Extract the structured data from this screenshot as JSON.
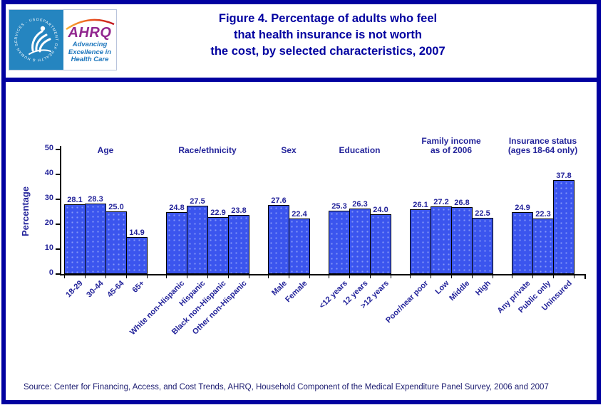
{
  "header": {
    "logo": {
      "seal_text": "DEPARTMENT OF HEALTH & HUMAN SERVICES · USA",
      "ahrq_text": "AHRQ",
      "tagline_lines": [
        "Advancing",
        "Excellence in",
        "Health Care"
      ]
    },
    "title_lines": [
      "Figure 4. Percentage of adults who feel",
      "that health insurance is not worth",
      "the cost, by selected characteristics, 2007"
    ]
  },
  "chart_data": {
    "type": "bar",
    "title": "Figure 4. Percentage of adults who feel that health insurance is not worth the cost, by selected characteristics, 2007",
    "ylabel": "Percentage",
    "xlabel": "",
    "ylim": [
      0,
      50
    ],
    "yticks": [
      0,
      10,
      20,
      30,
      40,
      50
    ],
    "grid": false,
    "legend": false,
    "bar_color": "#3b55ee",
    "bar_border_color": "#000000",
    "groups": [
      {
        "label": "Age",
        "label_lines": [
          "Age"
        ],
        "categories": [
          "18-29",
          "30-44",
          "45-64",
          "65+"
        ],
        "values": [
          28.1,
          28.3,
          25.0,
          14.9
        ]
      },
      {
        "label": "Race/ethnicity",
        "label_lines": [
          "Race/ethnicity"
        ],
        "categories": [
          "White non-Hispanic",
          "Hispanic",
          "Black non-Hispanic",
          "Other non-Hispanic"
        ],
        "values": [
          24.8,
          27.5,
          22.9,
          23.8
        ]
      },
      {
        "label": "Sex",
        "label_lines": [
          "Sex"
        ],
        "categories": [
          "Male",
          "Female"
        ],
        "values": [
          27.6,
          22.4
        ]
      },
      {
        "label": "Education",
        "label_lines": [
          "Education"
        ],
        "categories": [
          "<12 years",
          "12 years",
          ">12 years"
        ],
        "values": [
          25.3,
          26.3,
          24.0
        ]
      },
      {
        "label": "Family income as of 2006",
        "label_lines": [
          "Family income",
          "as of 2006"
        ],
        "categories": [
          "Poor/near poor",
          "Low",
          "Middle",
          "High"
        ],
        "values": [
          26.1,
          27.2,
          26.8,
          22.5
        ]
      },
      {
        "label": "Insurance status (ages 18-64 only)",
        "label_lines": [
          "Insurance status",
          "(ages 18-64 only)"
        ],
        "categories": [
          "Any private",
          "Public only",
          "Uninsured"
        ],
        "values": [
          24.9,
          22.3,
          37.8
        ]
      }
    ]
  },
  "footer": {
    "source": "Source: Center for Financing, Access, and Cost Trends, AHRQ, Household Component of the Medical Expenditure Panel Survey,  2006 and 2007"
  },
  "colors": {
    "frame_navy": "#0101a0",
    "title_navy": "#0000a0",
    "chart_text_navy": "#23239a",
    "bar_blue": "#3b55ee",
    "logo_blue": "#2585c0",
    "ahrq_purple": "#92278f",
    "tagline_blue": "#1b75bc"
  }
}
